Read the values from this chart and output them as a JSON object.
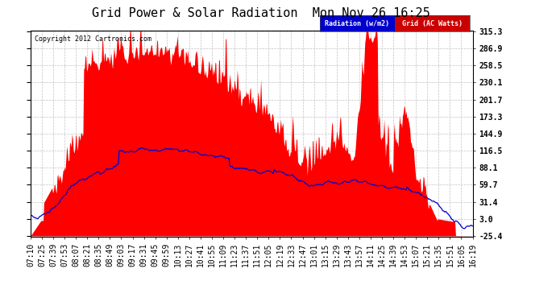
{
  "title": "Grid Power & Solar Radiation  Mon Nov 26 16:25",
  "copyright": "Copyright 2012 Cartronics.com",
  "legend_labels": [
    "Radiation (w/m2)",
    "Grid (AC Watts)"
  ],
  "yticks": [
    -25.4,
    3.0,
    31.4,
    59.7,
    88.1,
    116.5,
    144.9,
    173.3,
    201.7,
    230.1,
    258.5,
    286.9,
    315.3
  ],
  "ymin": -25.4,
  "ymax": 315.3,
  "background_color": "#ffffff",
  "plot_bg_color": "#ffffff",
  "grid_color": "#bbbbbb",
  "fill_color": "#ff0000",
  "line_color": "#0000cc",
  "title_fontsize": 11,
  "tick_fontsize": 7,
  "xtick_labels": [
    "07:10",
    "07:25",
    "07:39",
    "07:53",
    "08:07",
    "08:21",
    "08:35",
    "08:49",
    "09:03",
    "09:17",
    "09:31",
    "09:45",
    "09:59",
    "10:13",
    "10:27",
    "10:41",
    "10:55",
    "11:09",
    "11:23",
    "11:37",
    "11:51",
    "12:05",
    "12:19",
    "12:33",
    "12:47",
    "13:01",
    "13:15",
    "13:29",
    "13:43",
    "13:57",
    "14:11",
    "14:25",
    "14:39",
    "14:53",
    "15:07",
    "15:21",
    "15:35",
    "15:51",
    "16:05",
    "16:19"
  ]
}
